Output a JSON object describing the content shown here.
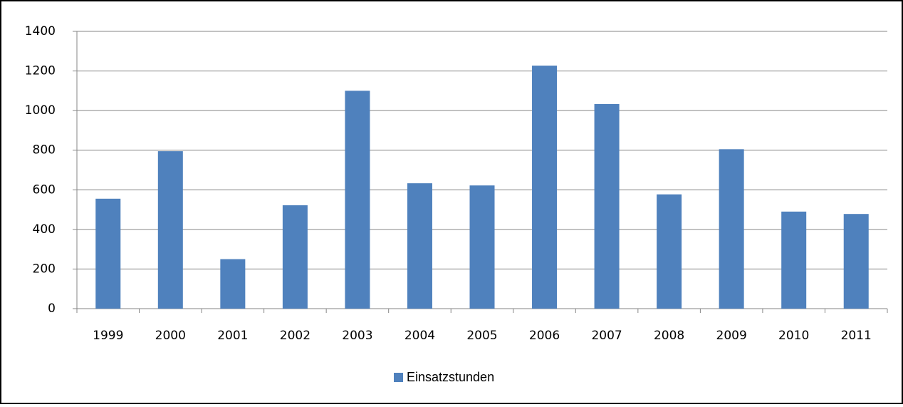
{
  "chart_data": {
    "type": "bar",
    "categories": [
      "1999",
      "2000",
      "2001",
      "2002",
      "2003",
      "2004",
      "2005",
      "2006",
      "2007",
      "2008",
      "2009",
      "2010",
      "2011"
    ],
    "series": [
      {
        "name": "Einsatzstunden",
        "color": "#4f81bd",
        "values": [
          555,
          795,
          250,
          522,
          1100,
          633,
          622,
          1227,
          1033,
          577,
          805,
          490,
          478
        ]
      }
    ],
    "ylim": [
      0,
      1400
    ],
    "yticks": [
      0,
      200,
      400,
      600,
      800,
      1000,
      1200,
      1400
    ],
    "grid": true,
    "legend": "bottom"
  }
}
